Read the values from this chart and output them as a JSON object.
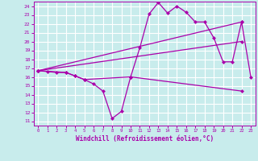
{
  "xlabel": "Windchill (Refroidissement éolien,°C)",
  "xlim": [
    -0.5,
    23.5
  ],
  "ylim": [
    10.5,
    24.5
  ],
  "xticks": [
    0,
    1,
    2,
    3,
    4,
    5,
    6,
    7,
    8,
    9,
    10,
    11,
    12,
    13,
    14,
    15,
    16,
    17,
    18,
    19,
    20,
    21,
    22,
    23
  ],
  "yticks": [
    11,
    12,
    13,
    14,
    15,
    16,
    17,
    18,
    19,
    20,
    21,
    22,
    23,
    24
  ],
  "bg_color": "#c8ecec",
  "grid_color": "#ffffff",
  "line_color": "#aa00aa",
  "line1_x": [
    0,
    1,
    2,
    3,
    4,
    5,
    10,
    11,
    12,
    13,
    14,
    15,
    16,
    17,
    18,
    19,
    20,
    21,
    22,
    23
  ],
  "line1_y": [
    16.7,
    16.6,
    16.5,
    16.5,
    16.1,
    15.7,
    16.0,
    19.3,
    23.1,
    24.4,
    23.2,
    24.0,
    23.3,
    22.2,
    22.2,
    20.4,
    17.7,
    17.7,
    22.2,
    16.0
  ],
  "line2_x": [
    0,
    3,
    4,
    5,
    6,
    7,
    8,
    9,
    10,
    22
  ],
  "line2_y": [
    16.7,
    16.5,
    16.1,
    15.7,
    15.2,
    14.4,
    11.3,
    12.1,
    16.0,
    14.4
  ],
  "line3_x": [
    0,
    22
  ],
  "line3_y": [
    16.7,
    22.2
  ],
  "line4_x": [
    0,
    22
  ],
  "line4_y": [
    16.7,
    20.0
  ]
}
